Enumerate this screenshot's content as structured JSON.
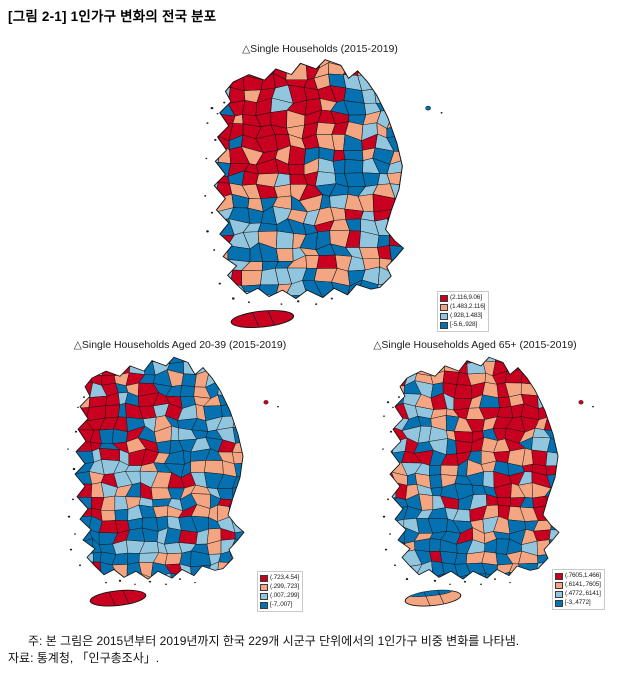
{
  "page": {
    "title": "[그림 2-1] 1인가구 변화의 전국 분포"
  },
  "palette": {
    "bin1_high": "#CA0020",
    "bin2": "#F4A582",
    "bin3": "#92C5DE",
    "bin4_low": "#0571B0",
    "outline": "#141414"
  },
  "maps": [
    {
      "id": "single-households-all",
      "title": "△Single Households (2015-2019)",
      "legend": [
        "(2.116,9.06]",
        "(1.483,2.116]",
        "(.928,1.483]",
        "[-5.6,.928]"
      ],
      "jeju_fill": "#CA0020"
    },
    {
      "id": "single-households-20-39",
      "title": "△Single Households Aged 20-39 (2015-2019)",
      "legend": [
        "(.723,4.54]",
        "(.299,.723]",
        "(.007,.299]",
        "[-7,.007]"
      ],
      "jeju_fill": "#CA0020"
    },
    {
      "id": "single-households-65plus",
      "title": "△Single Households Aged 65+ (2015-2019)",
      "legend": [
        "(.7605,1.466]",
        "(.6141,.7605]",
        "(.4772,.6141]",
        "[-3,.4772]"
      ],
      "jeju_fill": "#F4A582",
      "jeju_accent": "#0571B0"
    }
  ],
  "notes": {
    "note": "주: 본 그림은 2015년부터 2019년까지 한국 229개 시군구 단위에서의 1인가구 비중 변화를 나타냄.",
    "source": "자료: 통계청, 「인구총조사」."
  }
}
